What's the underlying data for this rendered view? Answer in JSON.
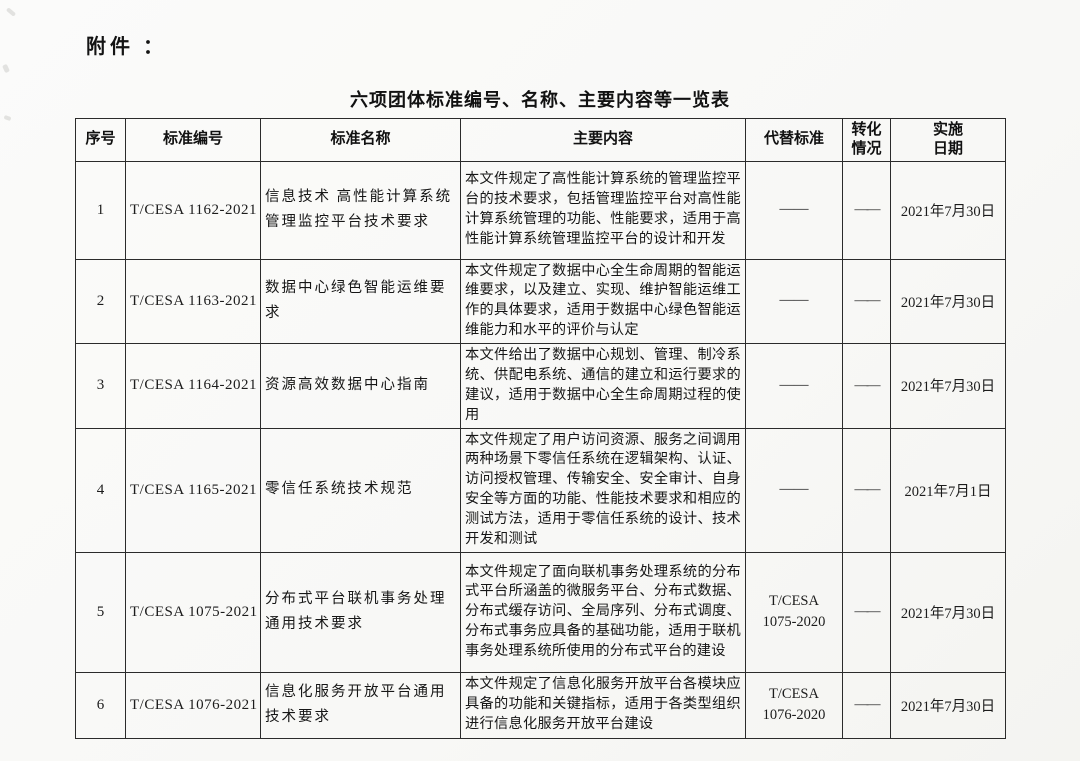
{
  "page": {
    "attachment_label": "附件 ：",
    "title": "六项团体标准编号、名称、主要内容等一览表"
  },
  "table": {
    "headers": [
      "序号",
      "标准编号",
      "标准名称",
      "主要内容",
      "代替标准",
      "转化\n情况",
      "实施\n日期"
    ],
    "rows": [
      {
        "no": "1",
        "code": "T/CESA 1162-2021",
        "name": "信息技术 高性能计算系统管理监控平台技术要求",
        "content": "本文件规定了高性能计算系统的管理监控平台的技术要求，包括管理监控平台对高性能计算系统管理的功能、性能要求，适用于高性能计算系统管理监控平台的设计和开发",
        "replaces": "——",
        "conversion": "——",
        "date": "2021年7月30日"
      },
      {
        "no": "2",
        "code": "T/CESA 1163-2021",
        "name": "数据中心绿色智能运维要求",
        "content": "本文件规定了数据中心全生命周期的智能运维要求，以及建立、实现、维护智能运维工作的具体要求，适用于数据中心绿色智能运维能力和水平的评价与认定",
        "replaces": "——",
        "conversion": "——",
        "date": "2021年7月30日"
      },
      {
        "no": "3",
        "code": "T/CESA 1164-2021",
        "name": "资源高效数据中心指南",
        "content": "本文件给出了数据中心规划、管理、制冷系统、供配电系统、通信的建立和运行要求的建议，适用于数据中心全生命周期过程的使用",
        "replaces": "——",
        "conversion": "——",
        "date": "2021年7月30日"
      },
      {
        "no": "4",
        "code": "T/CESA 1165-2021",
        "name": "零信任系统技术规范",
        "content": "本文件规定了用户访问资源、服务之间调用两种场景下零信任系统在逻辑架构、认证、访问授权管理、传输安全、安全审计、自身安全等方面的功能、性能技术要求和相应的测试方法，适用于零信任系统的设计、技术开发和测试",
        "replaces": "——",
        "conversion": "——",
        "date": "2021年7月1日"
      },
      {
        "no": "5",
        "code": "T/CESA 1075-2021",
        "name": "分布式平台联机事务处理通用技术要求",
        "content": "本文件规定了面向联机事务处理系统的分布式平台所涵盖的微服务平台、分布式数据、分布式缓存访问、全局序列、分布式调度、分布式事务应具备的基础功能，适用于联机事务处理系统所使用的分布式平台的建设",
        "replaces": "T/CESA\n1075-2020",
        "conversion": "——",
        "date": "2021年7月30日"
      },
      {
        "no": "6",
        "code": "T/CESA 1076-2021",
        "name": "信息化服务开放平台通用技术要求",
        "content": "本文件规定了信息化服务开放平台各模块应具备的功能和关键指标，适用于各类型组织进行信息化服务开放平台建设",
        "replaces": "T/CESA\n1076-2020",
        "conversion": "——",
        "date": "2021年7月30日"
      }
    ]
  }
}
